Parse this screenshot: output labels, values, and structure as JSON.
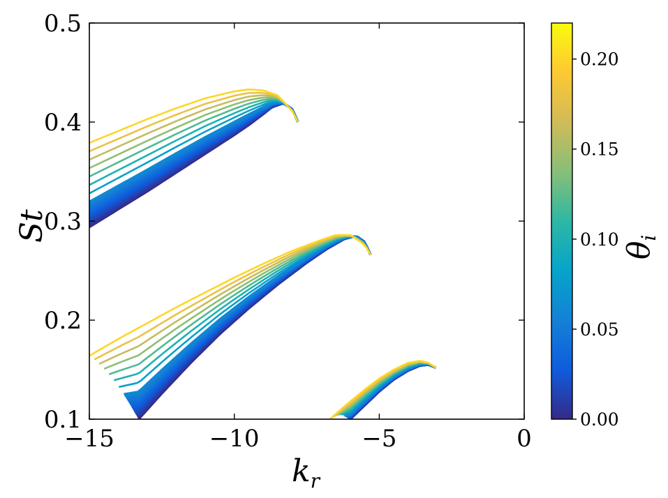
{
  "chart_data": {
    "type": "line",
    "xlabel": "k",
    "xlabel_subscript": "r",
    "ylabel": "St",
    "xlim": [
      -15,
      0
    ],
    "ylim": [
      0.1,
      0.5
    ],
    "xticks": [
      -15,
      -10,
      -5,
      0
    ],
    "xtick_labels": [
      "−15",
      "−10",
      "−5",
      "0"
    ],
    "yticks": [
      0.1,
      0.2,
      0.3,
      0.4,
      0.5
    ],
    "ytick_labels": [
      "0.1",
      "0.2",
      "0.3",
      "0.4",
      "0.5"
    ],
    "grid": false,
    "colorbar": {
      "label": "θ",
      "label_subscript": "i",
      "range": [
        0.0,
        0.22
      ],
      "ticks": [
        0.0,
        0.05,
        0.1,
        0.15,
        0.2
      ],
      "tick_labels": [
        "0.00",
        "0.05",
        "0.10",
        "0.15",
        "0.20"
      ],
      "colormap": "parula",
      "colors": [
        "#352a87",
        "#0f5cdd",
        "#1481d6",
        "#06a4ca",
        "#2eb7a4",
        "#87bf77",
        "#d1bb59",
        "#fec832",
        "#f9fb0e"
      ]
    },
    "theta_values": [
      0.0,
      0.02,
      0.04,
      0.06,
      0.08,
      0.1,
      0.12,
      0.14,
      0.16,
      0.18,
      0.2
    ],
    "branches": [
      {
        "name": "upper",
        "endpoint": [
          -7.8,
          0.4
        ],
        "low_theta": {
          "x": [
            -15,
            -14,
            -13,
            -12,
            -11,
            -10,
            -9.5,
            -9,
            -8.7,
            -8.3,
            -8.0,
            -7.8
          ],
          "y": [
            0.294,
            0.312,
            0.33,
            0.349,
            0.368,
            0.387,
            0.397,
            0.408,
            0.415,
            0.419,
            0.413,
            0.4
          ]
        },
        "high_theta": {
          "x": [
            -15,
            -14,
            -13,
            -12,
            -11,
            -10,
            -9.5,
            -9,
            -8.5,
            -8.0,
            -7.8
          ],
          "y": [
            0.379,
            0.391,
            0.403,
            0.414,
            0.424,
            0.431,
            0.433,
            0.432,
            0.427,
            0.411,
            0.4
          ]
        }
      },
      {
        "name": "middle",
        "endpoint": [
          -5.3,
          0.266
        ],
        "low_theta": {
          "x": [
            -13.3,
            -12.5,
            -11.5,
            -10.5,
            -9.5,
            -8.5,
            -7.5,
            -6.8,
            -6.2,
            -5.8,
            -5.5,
            -5.3
          ],
          "y": [
            0.1,
            0.126,
            0.157,
            0.186,
            0.212,
            0.236,
            0.258,
            0.272,
            0.282,
            0.285,
            0.279,
            0.266
          ]
        },
        "high_theta": {
          "x": [
            -15,
            -14,
            -13,
            -12,
            -11,
            -10,
            -9,
            -8,
            -7,
            -6.5,
            -6,
            -5.5,
            -5.3
          ],
          "y": [
            0.164,
            0.181,
            0.197,
            0.213,
            0.228,
            0.243,
            0.257,
            0.27,
            0.281,
            0.286,
            0.286,
            0.276,
            0.266
          ]
        }
      },
      {
        "name": "lower",
        "endpoint": [
          -3.05,
          0.152
        ],
        "low_theta": {
          "x": [
            -6.0,
            -5.5,
            -5.0,
            -4.5,
            -4.0,
            -3.6,
            -3.3,
            -3.05
          ],
          "y": [
            0.1,
            0.114,
            0.128,
            0.14,
            0.149,
            0.154,
            0.155,
            0.152
          ]
        },
        "high_theta": {
          "x": [
            -6.7,
            -6.2,
            -5.5,
            -5.0,
            -4.5,
            -4.0,
            -3.6,
            -3.3,
            -3.05
          ],
          "y": [
            0.1,
            0.113,
            0.13,
            0.141,
            0.15,
            0.157,
            0.159,
            0.157,
            0.152
          ]
        }
      }
    ]
  }
}
